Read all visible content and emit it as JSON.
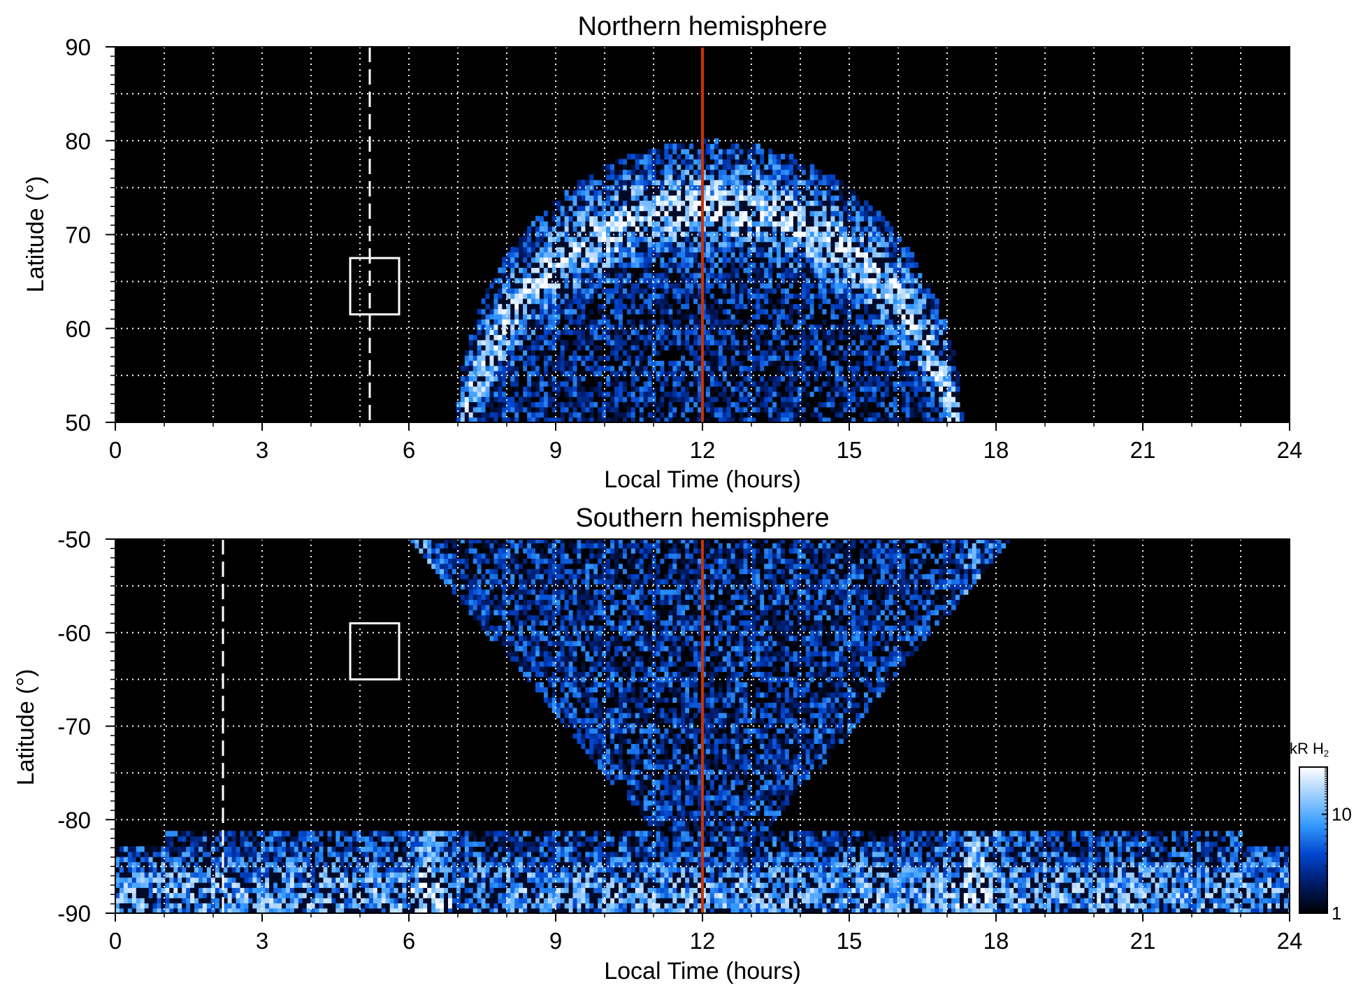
{
  "chart_data": [
    {
      "type": "heatmap",
      "title": "Northern hemisphere",
      "xlabel": "Local Time (hours)",
      "ylabel": "Latitude (°)",
      "xlim": [
        0,
        24
      ],
      "ylim": [
        50,
        90
      ],
      "xticks": [
        "0",
        "3",
        "6",
        "9",
        "12",
        "15",
        "18",
        "21",
        "24"
      ],
      "yticks": [
        "50",
        "60",
        "70",
        "80",
        "90"
      ],
      "grid": true,
      "background": "#000000",
      "emission_region": {
        "lt_min": 7.0,
        "lt_max": 17.3,
        "lat_max": 80,
        "auroral_ring_lat": [
          65,
          75
        ]
      },
      "noon_line": {
        "x": 12,
        "color": "#cc3300"
      },
      "dashed_line": {
        "x": 5.2,
        "color": "#ffffff"
      },
      "box": {
        "x": [
          4.8,
          5.8
        ],
        "y": [
          61.5,
          67.5
        ],
        "color": "#ffffff"
      }
    },
    {
      "type": "heatmap",
      "title": "Southern hemisphere",
      "xlabel": "Local Time (hours)",
      "ylabel": "Latitude (°)",
      "xlim": [
        0,
        24
      ],
      "ylim": [
        -90,
        -50
      ],
      "xticks": [
        "0",
        "3",
        "6",
        "9",
        "12",
        "15",
        "18",
        "21",
        "24"
      ],
      "yticks": [
        "-90",
        "-80",
        "-70",
        "-60",
        "-50"
      ],
      "grid": true,
      "background": "#000000",
      "emission_region": {
        "lt_min": 0,
        "lt_max": 24,
        "bright_arcs_lt": [
          6.3,
          17.7
        ],
        "bright_lat": [
          -78,
          -70
        ]
      },
      "noon_line": {
        "x": 12,
        "color": "#cc3300"
      },
      "dashed_line": {
        "x": 2.2,
        "color": "#ffffff"
      },
      "box": {
        "x": [
          4.8,
          5.8
        ],
        "y": [
          -65,
          -59
        ],
        "color": "#ffffff"
      }
    }
  ],
  "colorbar": {
    "label_text": "kR H",
    "label_sub": "2",
    "ticks": [
      "1",
      "10"
    ],
    "scale": "log",
    "range": [
      1,
      30
    ],
    "colors": [
      "#000000",
      "#001a66",
      "#0044cc",
      "#3399ff",
      "#99ccff",
      "#ffffff"
    ]
  }
}
